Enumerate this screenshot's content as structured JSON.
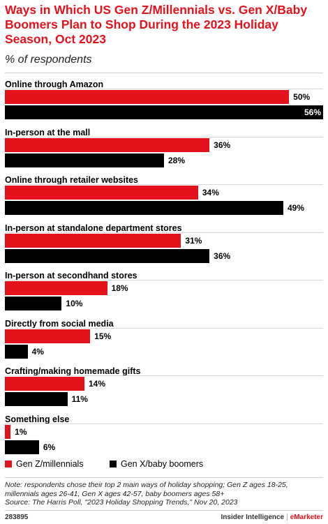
{
  "header": {
    "title": "Ways in Which US Gen Z/Millennials vs. Gen X/Baby Boomers Plan to Shop During the 2023 Holiday Season, Oct 2023",
    "subtitle": "% of respondents"
  },
  "chart_data": {
    "type": "bar",
    "orientation": "horizontal",
    "categories": [
      "Online through Amazon",
      "In-person at the mall",
      "Online through retailer websites",
      "In-person at standalone department stores",
      "In-person at secondhand stores",
      "Directly from social media",
      "Crafting/making homemade gifts",
      "Something else"
    ],
    "series": [
      {
        "name": "Gen Z/millennials",
        "color": "#e4121b",
        "values": [
          50,
          36,
          34,
          31,
          18,
          15,
          14,
          1
        ]
      },
      {
        "name": "Gen X/baby boomers",
        "color": "#000000",
        "values": [
          56,
          28,
          49,
          36,
          10,
          4,
          11,
          6
        ]
      }
    ],
    "value_suffix": "%",
    "xlim": [
      0,
      56
    ],
    "grid": false,
    "legend_position": "bottom-left"
  },
  "notes": {
    "line1": "Note: respondents chose their top 2 main ways of holiday shopping; Gen Z ages 18-25,",
    "line2": "millennials ages 26-41, Gen X ages 42-57, baby boomers ages 58+",
    "line3": "Source: The Harris Poll, \"2023 Holiday Shopping Trends,\" Nov 20, 2023"
  },
  "footer": {
    "chart_id": "283895",
    "brand_main": "Insider Intelligence",
    "brand_sep": "|",
    "brand_accent": "eMarketer"
  }
}
